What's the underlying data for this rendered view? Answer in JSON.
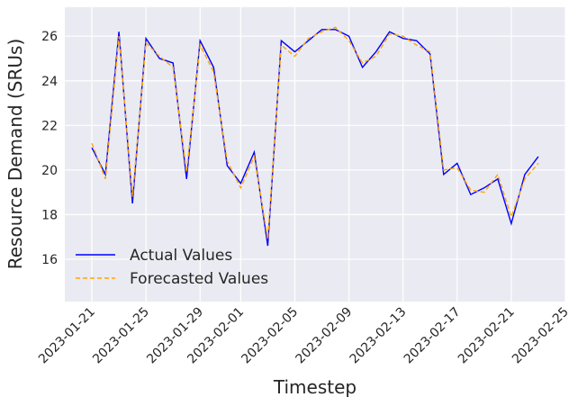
{
  "chart_data": {
    "type": "line",
    "xlabel": "Timestep",
    "ylabel": "Resource Demand (SRUs)",
    "x": [
      "2023-01-21",
      "2023-01-22",
      "2023-01-23",
      "2023-01-24",
      "2023-01-25",
      "2023-01-26",
      "2023-01-27",
      "2023-01-28",
      "2023-01-29",
      "2023-01-30",
      "2023-01-31",
      "2023-02-01",
      "2023-02-02",
      "2023-02-03",
      "2023-02-04",
      "2023-02-05",
      "2023-02-06",
      "2023-02-07",
      "2023-02-08",
      "2023-02-09",
      "2023-02-10",
      "2023-02-11",
      "2023-02-12",
      "2023-02-13",
      "2023-02-14",
      "2023-02-15",
      "2023-02-16",
      "2023-02-17",
      "2023-02-18",
      "2023-02-19",
      "2023-02-20",
      "2023-02-21",
      "2023-02-22",
      "2023-02-23"
    ],
    "series": [
      {
        "name": "Actual Values",
        "color": "#0000ff",
        "dash": false,
        "values": [
          21.0,
          19.8,
          26.2,
          18.5,
          25.9,
          25.0,
          24.8,
          19.6,
          25.8,
          24.6,
          20.2,
          19.4,
          20.8,
          16.6,
          25.8,
          25.3,
          25.8,
          26.3,
          26.3,
          26.0,
          24.6,
          25.3,
          26.2,
          25.9,
          25.8,
          25.2,
          19.8,
          20.3,
          18.9,
          19.2,
          19.6,
          17.6,
          19.8,
          20.6
        ]
      },
      {
        "name": "Forecasted Values",
        "color": "#ffa500",
        "dash": true,
        "values": [
          21.2,
          19.6,
          26.0,
          18.8,
          25.7,
          25.1,
          24.6,
          19.9,
          25.6,
          24.4,
          20.4,
          19.2,
          20.6,
          16.9,
          25.6,
          25.1,
          25.9,
          26.2,
          26.4,
          25.8,
          24.8,
          25.1,
          26.1,
          26.0,
          25.6,
          25.3,
          20.0,
          20.1,
          19.1,
          19.0,
          19.8,
          17.9,
          19.6,
          20.3
        ]
      }
    ],
    "xlim": [
      "2023-01-19",
      "2023-02-25"
    ],
    "xticks": [
      "2023-01-21",
      "2023-01-25",
      "2023-01-29",
      "2023-02-01",
      "2023-02-05",
      "2023-02-09",
      "2023-02-13",
      "2023-02-17",
      "2023-02-21",
      "2023-02-25"
    ],
    "ylim": [
      14.1,
      27.3
    ],
    "yticks": [
      16,
      18,
      20,
      22,
      24,
      26
    ],
    "grid": true,
    "legend": "lower left"
  }
}
